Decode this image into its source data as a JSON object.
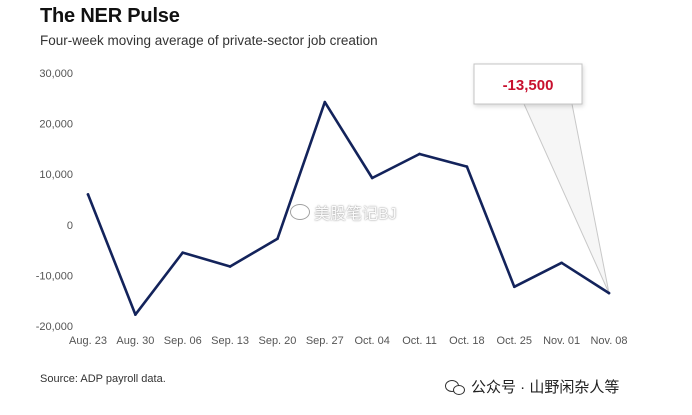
{
  "title": "The NER Pulse",
  "subtitle": "Four-week moving average of private-sector job creation",
  "source": "Source: ADP payroll data.",
  "watermark": "美股笔记BJ",
  "footer_brand": "公众号 · 山野闲杂人等",
  "callout_text": "-13,500",
  "colors": {
    "line": "#13235b",
    "callout": "#c8102e",
    "axis": "#555555"
  },
  "chart_data": {
    "type": "line",
    "title": "The NER Pulse",
    "subtitle": "Four-week moving average of private-sector job creation",
    "categories": [
      "Aug. 23",
      "Aug. 30",
      "Sep. 06",
      "Sep. 13",
      "Sep. 20",
      "Sep. 27",
      "Oct. 04",
      "Oct. 11",
      "Oct. 18",
      "Oct. 25",
      "Nov. 01",
      "Nov. 08"
    ],
    "yticks": [
      "30,000",
      "20,000",
      "10,000",
      "0",
      "-10,000",
      "-20,000"
    ],
    "series": [
      {
        "values": [
          6000,
          -17750,
          -5500,
          -8250,
          -2750,
          24250,
          9250,
          14000,
          11500,
          -12250,
          -7500,
          -13500
        ]
      }
    ],
    "ylim": [
      -20000,
      30000
    ],
    "grid": false,
    "legend": "none",
    "annotations": [
      {
        "category": "Nov. 08",
        "text": "-13,500"
      }
    ]
  }
}
